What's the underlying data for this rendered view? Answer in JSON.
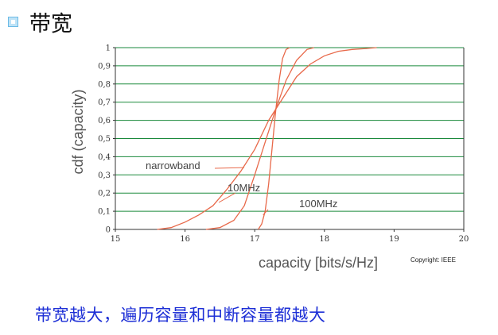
{
  "slide": {
    "title": "带宽",
    "caption": "带宽越大，遍历容量和中断容量都越大",
    "copyright": "Copyright: IEEE"
  },
  "colors": {
    "grid": "#1a8a3c",
    "curve": "#e8694a",
    "caption": "#1d2fd6"
  },
  "chart_data": {
    "type": "line",
    "xlabel": "capacity [bits/s/Hz]",
    "ylabel": "cdf (capacity)",
    "xlim": [
      15,
      20
    ],
    "ylim": [
      0,
      1
    ],
    "x_ticks": [
      15,
      16,
      17,
      18,
      19,
      20
    ],
    "y_ticks": [
      0,
      0.1,
      0.2,
      0.3,
      0.4,
      0.5,
      0.6,
      0.7,
      0.8,
      0.9,
      1
    ],
    "y_tick_labels": [
      "0",
      "0,1",
      "0,2",
      "0,3",
      "0,4",
      "0,5",
      "0,6",
      "0,7",
      "0,8",
      "0,9",
      "1"
    ],
    "grid": "horizontal",
    "series": [
      {
        "name": "narrowband",
        "x": [
          15.6,
          15.8,
          16.0,
          16.2,
          16.4,
          16.6,
          16.8,
          17.0,
          17.2,
          17.4,
          17.6,
          17.8,
          18.0,
          18.2,
          18.4,
          18.6,
          18.75
        ],
        "y": [
          0.0,
          0.01,
          0.04,
          0.08,
          0.13,
          0.22,
          0.32,
          0.44,
          0.6,
          0.72,
          0.84,
          0.91,
          0.955,
          0.98,
          0.99,
          0.995,
          1.0
        ]
      },
      {
        "name": "10MHz",
        "x": [
          16.3,
          16.5,
          16.7,
          16.85,
          17.0,
          17.15,
          17.3,
          17.45,
          17.6,
          17.75,
          17.85
        ],
        "y": [
          0.0,
          0.01,
          0.05,
          0.13,
          0.3,
          0.48,
          0.66,
          0.82,
          0.93,
          0.99,
          1.0
        ]
      },
      {
        "name": "100MHz",
        "x": [
          17.05,
          17.1,
          17.15,
          17.2,
          17.25,
          17.3,
          17.35,
          17.4,
          17.45,
          17.5
        ],
        "y": [
          0.0,
          0.03,
          0.1,
          0.25,
          0.45,
          0.65,
          0.82,
          0.94,
          0.99,
          1.0
        ]
      }
    ],
    "annotations": [
      {
        "text": "narrowband",
        "series": "narrowband"
      },
      {
        "text": "10MHz",
        "series": "10MHz"
      },
      {
        "text": "100MHz",
        "series": "100MHz"
      }
    ]
  }
}
